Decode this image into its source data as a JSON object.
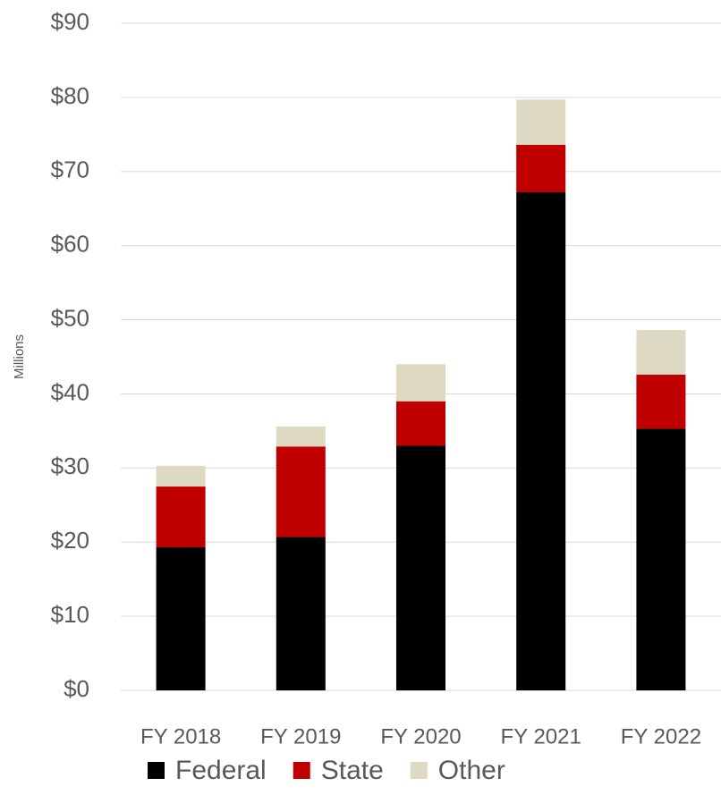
{
  "chart_data": {
    "type": "stacked_bar",
    "y_axis_label": "Millions",
    "categories": [
      "FY 2018",
      "FY 2019",
      "FY 2020",
      "FY 2021",
      "FY 2022"
    ],
    "series": [
      {
        "name": "Federal",
        "color": "#000000",
        "values": [
          19.3,
          20.7,
          33.0,
          67.2,
          35.3
        ]
      },
      {
        "name": "State",
        "color": "#c00000",
        "values": [
          8.2,
          12.2,
          6.0,
          6.4,
          7.3
        ]
      },
      {
        "name": "Other",
        "color": "#ddd9c3",
        "values": [
          2.8,
          2.7,
          5.0,
          6.1,
          6.0
        ]
      }
    ],
    "ylim": [
      0,
      90
    ],
    "yticks": [
      {
        "value": 0,
        "label": "$0"
      },
      {
        "value": 10,
        "label": "$10"
      },
      {
        "value": 20,
        "label": "$20"
      },
      {
        "value": 30,
        "label": "$30"
      },
      {
        "value": 40,
        "label": "$40"
      },
      {
        "value": 50,
        "label": "$50"
      },
      {
        "value": 60,
        "label": "$60"
      },
      {
        "value": 70,
        "label": "$70"
      },
      {
        "value": 80,
        "label": "$80"
      },
      {
        "value": 90,
        "label": "$90"
      }
    ],
    "grid": true,
    "legend": "bottom"
  }
}
